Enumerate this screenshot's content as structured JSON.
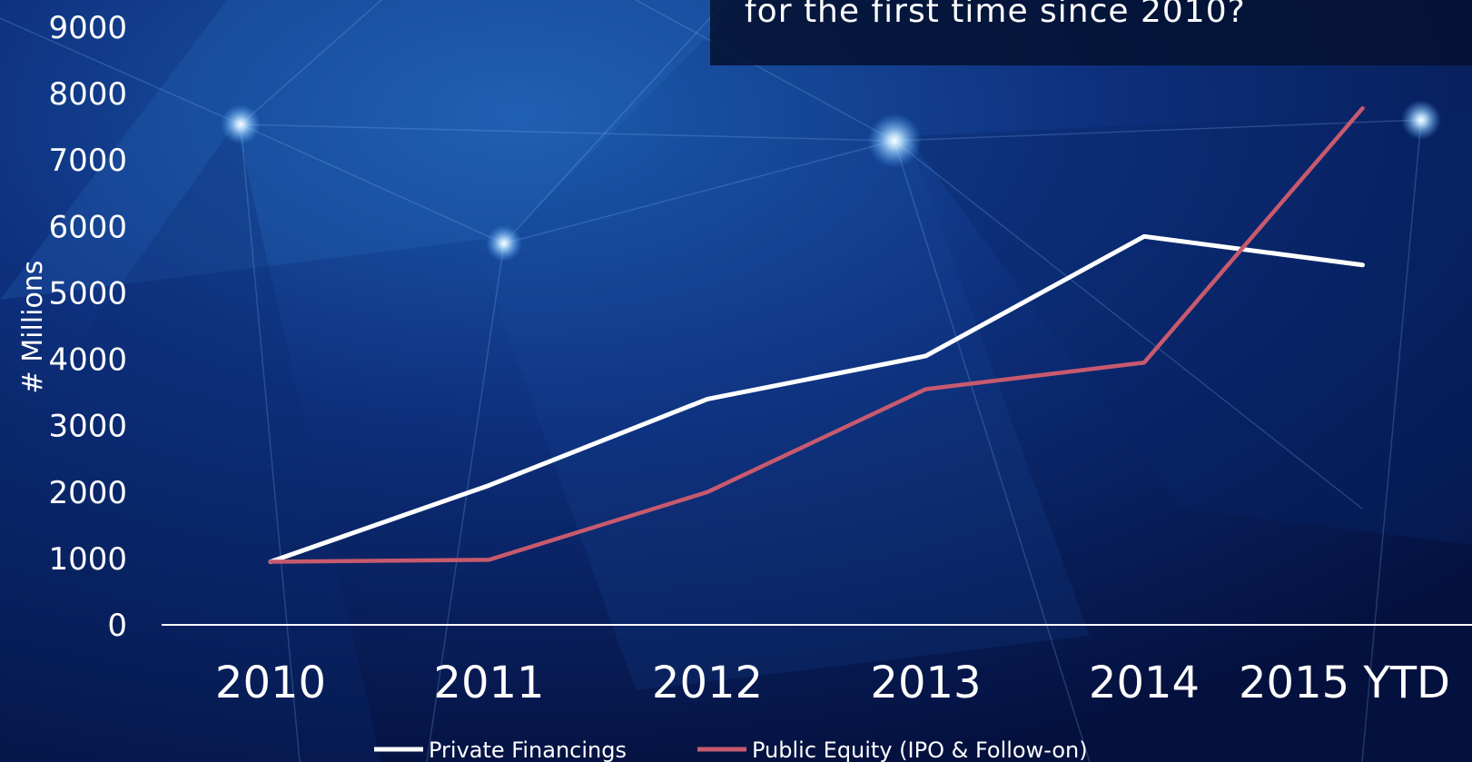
{
  "banner": {
    "text": "for the first time since 2010?"
  },
  "chart_data": {
    "type": "line",
    "categories": [
      "2010",
      "2011",
      "2012",
      "2013",
      "2014",
      "2015 YTD"
    ],
    "series": [
      {
        "name": "Private Financings",
        "color": "#ffffff",
        "values": [
          950,
          2100,
          3400,
          4050,
          5850,
          5420
        ]
      },
      {
        "name": "Public Equity (IPO & Follow-on)",
        "color": "#c85a6e",
        "values": [
          950,
          980,
          2000,
          3550,
          3950,
          7780
        ]
      }
    ],
    "ylabel": "# Millions",
    "ylim": [
      0,
      9000
    ],
    "yticks": [
      "0",
      "1000",
      "2000",
      "3000",
      "4000",
      "5000",
      "6000",
      "7000",
      "8000",
      "9000"
    ],
    "grid": false,
    "legend": "bottom"
  }
}
